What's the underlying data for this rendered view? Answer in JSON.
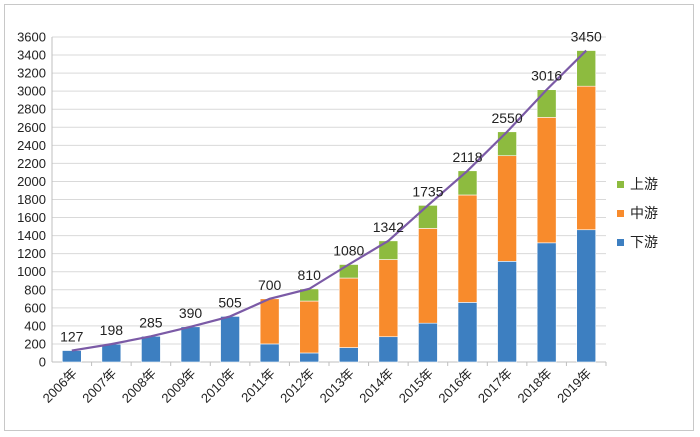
{
  "chart_data": {
    "type": "bar",
    "stacked": true,
    "categories": [
      "2006年",
      "2007年",
      "2008年",
      "2009年",
      "2010年",
      "2011年",
      "2012年",
      "2013年",
      "2014年",
      "2015年",
      "2016年",
      "2017年",
      "2018年",
      "2019年"
    ],
    "series": [
      {
        "name": "下游",
        "color": "#3d7fc1",
        "values": [
          127,
          198,
          285,
          390,
          505,
          200,
          100,
          160,
          280,
          430,
          660,
          1115,
          1320,
          1465
        ]
      },
      {
        "name": "中游",
        "color": "#f88b2c",
        "values": [
          0,
          0,
          0,
          0,
          0,
          500,
          575,
          770,
          855,
          1050,
          1190,
          1170,
          1390,
          1590
        ]
      },
      {
        "name": "上游",
        "color": "#8dbb3f",
        "values": [
          0,
          0,
          0,
          0,
          0,
          0,
          135,
          150,
          207,
          255,
          268,
          265,
          306,
          395
        ]
      }
    ],
    "totals": {
      "color": "#7b5aa6",
      "values": [
        127,
        198,
        285,
        390,
        505,
        700,
        810,
        1080,
        1342,
        1735,
        2118,
        2550,
        3016,
        3450
      ]
    },
    "ylim": [
      0,
      3600
    ],
    "yticks": [
      0,
      200,
      400,
      600,
      800,
      1000,
      1200,
      1400,
      1600,
      1800,
      2000,
      2200,
      2400,
      2600,
      2800,
      3000,
      3200,
      3400,
      3600
    ],
    "grid": true,
    "legend": "right"
  }
}
